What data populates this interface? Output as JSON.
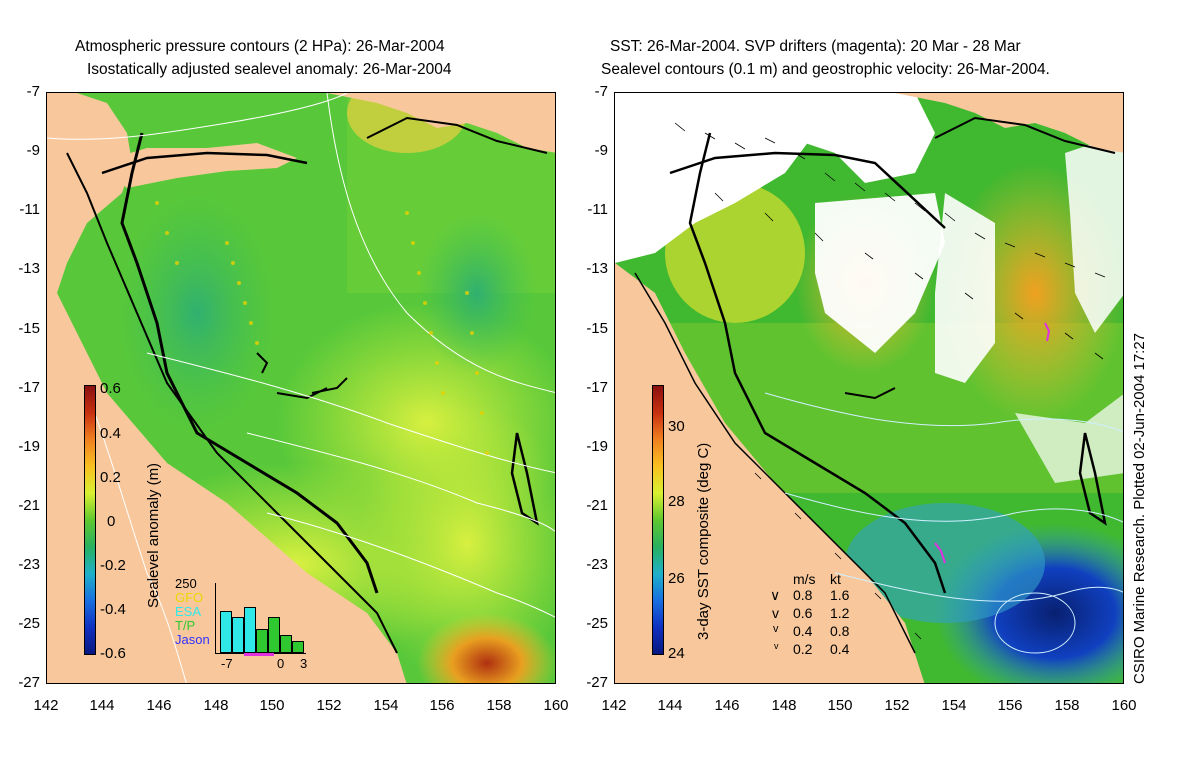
{
  "left_panel": {
    "title_line1": "Atmospheric pressure contours (2 HPa): 26-Mar-2004",
    "title_line2": "Isostatically adjusted sealevel anomaly: 26-Mar-2004",
    "colorbar": {
      "label": "Sealevel anomaly (m)",
      "ticks": [
        "0.6",
        "0.4",
        "0.2",
        "0",
        "-0.2",
        "-0.4",
        "-0.6"
      ],
      "min": -0.6,
      "max": 0.6
    },
    "histogram": {
      "ymax_label": "250",
      "legend": [
        "GFO",
        "ESA",
        "T/P",
        "Jason"
      ],
      "legend_colors": [
        "#e8d800",
        "#30e8e8",
        "#30c830",
        "#3030ff"
      ],
      "x_ticks": [
        "-7",
        "0",
        "3"
      ]
    }
  },
  "right_panel": {
    "title_line1": "SST: 26-Mar-2004. SVP drifters (magenta): 20 Mar - 28 Mar",
    "title_line2": "Sealevel contours (0.1 m) and geostrophic velocity: 26-Mar-2004.",
    "colorbar": {
      "label": "3-day SST composite (deg C)",
      "ticks": [
        "30",
        "28",
        "26",
        "24"
      ],
      "min": 24,
      "max": 31
    },
    "speed_legend": {
      "header_ms": "m/s",
      "header_kt": "kt",
      "rows": [
        {
          "ms": "0.8",
          "kt": "1.6"
        },
        {
          "ms": "0.6",
          "kt": "1.2"
        },
        {
          "ms": "0.4",
          "kt": "0.8"
        },
        {
          "ms": "0.2",
          "kt": "0.4"
        }
      ]
    }
  },
  "axes": {
    "y_ticks": [
      "-7",
      "-9",
      "-11",
      "-13",
      "-15",
      "-17",
      "-19",
      "-21",
      "-23",
      "-25",
      "-27"
    ],
    "x_ticks": [
      "142",
      "144",
      "146",
      "148",
      "150",
      "152",
      "154",
      "156",
      "158",
      "160"
    ]
  },
  "credit": "CSIRO Marine Research. Plotted 02-Jun-2004 17:27",
  "colors": {
    "land": "#f8c89c",
    "ocean_green": "#50c830",
    "ocean_yellow": "#b8e830",
    "orange": "#f0b020",
    "deep_blue": "#0828a0"
  }
}
